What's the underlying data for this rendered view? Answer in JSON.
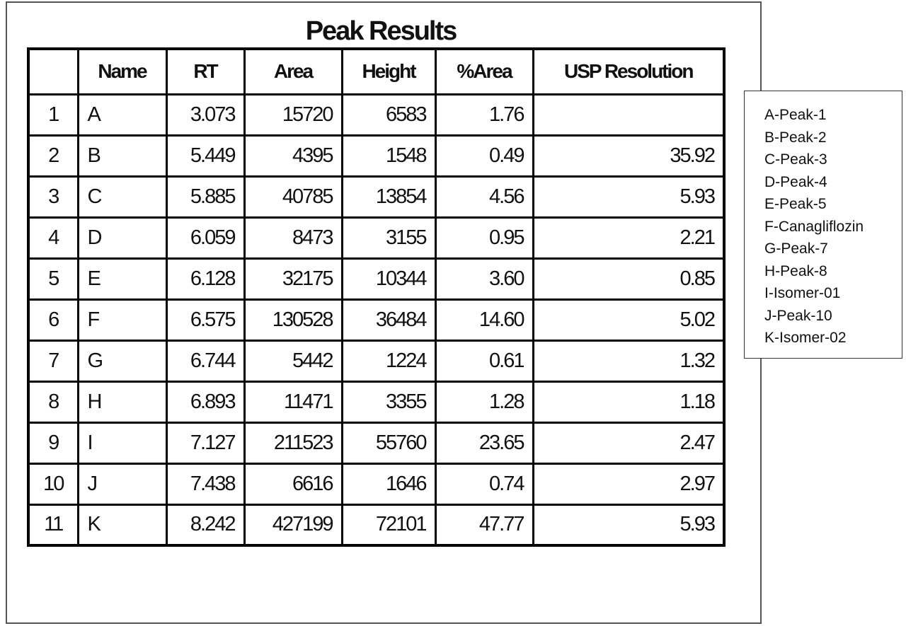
{
  "title": "Peak Results",
  "columns": [
    "",
    "Name",
    "RT",
    "Area",
    "Height",
    "%Area",
    "USP Resolution"
  ],
  "rows": [
    {
      "idx": "1",
      "name": "A",
      "rt": "3.073",
      "area": "15720",
      "height": "6583",
      "pct_area": "1.76",
      "usp": ""
    },
    {
      "idx": "2",
      "name": "B",
      "rt": "5.449",
      "area": "4395",
      "height": "1548",
      "pct_area": "0.49",
      "usp": "35.92"
    },
    {
      "idx": "3",
      "name": "C",
      "rt": "5.885",
      "area": "40785",
      "height": "13854",
      "pct_area": "4.56",
      "usp": "5.93"
    },
    {
      "idx": "4",
      "name": "D",
      "rt": "6.059",
      "area": "8473",
      "height": "3155",
      "pct_area": "0.95",
      "usp": "2.21"
    },
    {
      "idx": "5",
      "name": "E",
      "rt": "6.128",
      "area": "32175",
      "height": "10344",
      "pct_area": "3.60",
      "usp": "0.85"
    },
    {
      "idx": "6",
      "name": "F",
      "rt": "6.575",
      "area": "130528",
      "height": "36484",
      "pct_area": "14.60",
      "usp": "5.02"
    },
    {
      "idx": "7",
      "name": "G",
      "rt": "6.744",
      "area": "5442",
      "height": "1224",
      "pct_area": "0.61",
      "usp": "1.32"
    },
    {
      "idx": "8",
      "name": "H",
      "rt": "6.893",
      "area": "11471",
      "height": "3355",
      "pct_area": "1.28",
      "usp": "1.18"
    },
    {
      "idx": "9",
      "name": "I",
      "rt": "7.127",
      "area": "211523",
      "height": "55760",
      "pct_area": "23.65",
      "usp": "2.47"
    },
    {
      "idx": "10",
      "name": "J",
      "rt": "7.438",
      "area": "6616",
      "height": "1646",
      "pct_area": "0.74",
      "usp": "2.97"
    },
    {
      "idx": "11",
      "name": "K",
      "rt": "8.242",
      "area": "427199",
      "height": "72101",
      "pct_area": "47.77",
      "usp": "5.93"
    }
  ],
  "legend": [
    "A-Peak-1",
    "B-Peak-2",
    "C-Peak-3",
    "D-Peak-4",
    "E-Peak-5",
    "F-Canagliflozin",
    "G-Peak-7",
    "H-Peak-8",
    "I-Isomer-01",
    "J-Peak-10",
    "K-Isomer-02"
  ]
}
